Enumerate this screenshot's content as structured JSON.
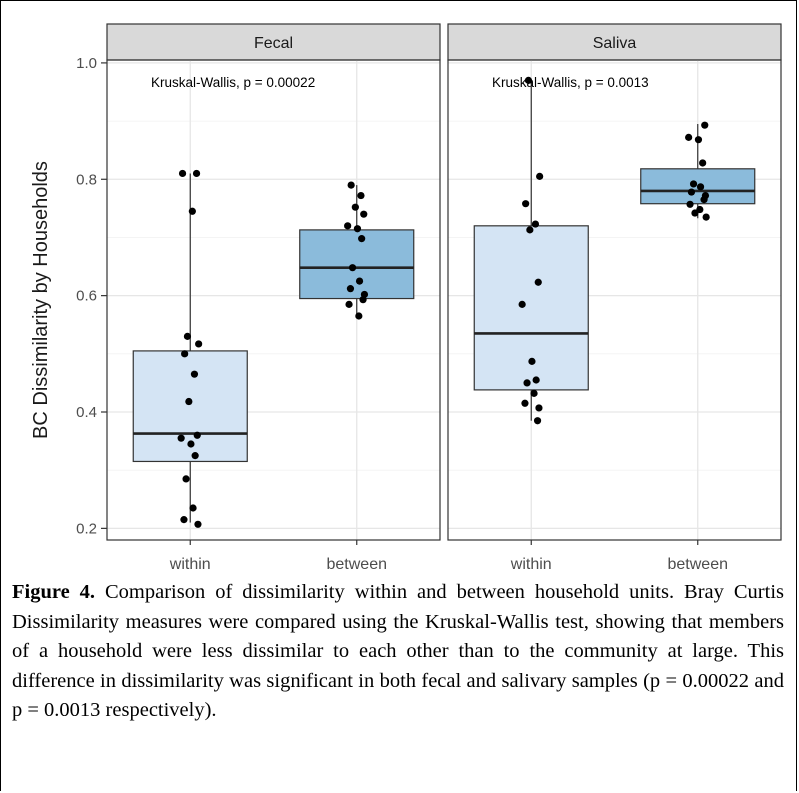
{
  "chart_data": {
    "type": "box",
    "ylabel": "BC Dissimilarity by Households",
    "ylim": [
      0.18,
      1.005
    ],
    "yticks": [
      0.2,
      0.4,
      0.6,
      0.8,
      1.0
    ],
    "ytick_labels": [
      "0.2",
      "0.4",
      "0.6",
      "0.8",
      "1.0"
    ],
    "categories": [
      "within",
      "between"
    ],
    "panels": [
      {
        "facet": "Fecal",
        "annotation": "Kruskal-Wallis, p = 0.00022",
        "boxes": [
          {
            "category": "within",
            "color": "#d4e4f4",
            "whisker_low": 0.21,
            "q1": 0.315,
            "median": 0.363,
            "q3": 0.505,
            "whisker_high": 0.81,
            "points": [
              0.81,
              0.81,
              0.745,
              0.53,
              0.517,
              0.5,
              0.465,
              0.418,
              0.36,
              0.355,
              0.345,
              0.325,
              0.285,
              0.235,
              0.215,
              0.207
            ]
          },
          {
            "category": "between",
            "color": "#8bbbdb",
            "whisker_low": 0.563,
            "q1": 0.595,
            "median": 0.648,
            "q3": 0.713,
            "whisker_high": 0.79,
            "points": [
              0.79,
              0.772,
              0.752,
              0.74,
              0.72,
              0.715,
              0.698,
              0.648,
              0.625,
              0.612,
              0.602,
              0.593,
              0.585,
              0.565
            ]
          }
        ]
      },
      {
        "facet": "Saliva",
        "annotation": "Kruskal-Wallis, p = 0.0013",
        "boxes": [
          {
            "category": "within",
            "color": "#d4e4f4",
            "whisker_low": 0.385,
            "q1": 0.438,
            "median": 0.535,
            "q3": 0.72,
            "whisker_high": 0.97,
            "points": [
              0.97,
              0.805,
              0.758,
              0.723,
              0.713,
              0.623,
              0.585,
              0.487,
              0.455,
              0.45,
              0.432,
              0.415,
              0.407,
              0.385
            ]
          },
          {
            "category": "between",
            "color": "#8bbbdb",
            "whisker_low": 0.733,
            "q1": 0.758,
            "median": 0.78,
            "q3": 0.818,
            "whisker_high": 0.895,
            "points": [
              0.893,
              0.872,
              0.868,
              0.828,
              0.792,
              0.787,
              0.778,
              0.772,
              0.765,
              0.757,
              0.748,
              0.742,
              0.735
            ]
          }
        ]
      }
    ]
  },
  "caption": {
    "label": "Figure 4.",
    "text": " Comparison of dissimilarity within and between household units. Bray Curtis Dissimilarity measures were compared using the Kruskal-Wallis test, showing that members of a household were less dissimilar to each other than to the community at large. This difference in dissimilarity was significant in both fecal and salivary samples (p = 0.00022 and p = 0.0013 respectively)."
  }
}
